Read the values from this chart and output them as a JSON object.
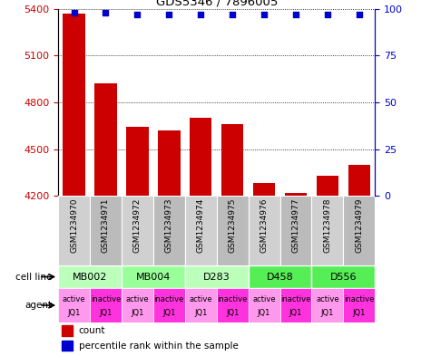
{
  "title": "GDS5346 / 7896005",
  "samples": [
    "GSM1234970",
    "GSM1234971",
    "GSM1234972",
    "GSM1234973",
    "GSM1234974",
    "GSM1234975",
    "GSM1234976",
    "GSM1234977",
    "GSM1234978",
    "GSM1234979"
  ],
  "counts": [
    5370,
    4920,
    4640,
    4620,
    4700,
    4660,
    4280,
    4220,
    4330,
    4400
  ],
  "percentile_ranks": [
    98,
    98,
    97,
    97,
    97,
    97,
    97,
    97,
    97,
    97
  ],
  "ylim_left": [
    4200,
    5400
  ],
  "ylim_right": [
    0,
    100
  ],
  "yticks_left": [
    4200,
    4500,
    4800,
    5100,
    5400
  ],
  "yticks_right": [
    0,
    25,
    50,
    75,
    100
  ],
  "bar_color": "#cc0000",
  "dot_color": "#0000cc",
  "sample_bg_even": "#d0d0d0",
  "sample_bg_odd": "#bbbbbb",
  "cell_lines": [
    {
      "name": "MB002",
      "start": 0,
      "end": 2,
      "color": "#bbffbb"
    },
    {
      "name": "MB004",
      "start": 2,
      "end": 4,
      "color": "#99ff99"
    },
    {
      "name": "D283",
      "start": 4,
      "end": 6,
      "color": "#bbffbb"
    },
    {
      "name": "D458",
      "start": 6,
      "end": 8,
      "color": "#55ee55"
    },
    {
      "name": "D556",
      "start": 8,
      "end": 10,
      "color": "#55ee55"
    }
  ],
  "agents": [
    {
      "label_top": "active",
      "label_bot": "JQ1",
      "color": "#ff99ee"
    },
    {
      "label_top": "inactive",
      "label_bot": "JQ1",
      "color": "#ff33dd"
    },
    {
      "label_top": "active",
      "label_bot": "JQ1",
      "color": "#ff99ee"
    },
    {
      "label_top": "inactive",
      "label_bot": "JQ1",
      "color": "#ff33dd"
    },
    {
      "label_top": "active",
      "label_bot": "JQ1",
      "color": "#ff99ee"
    },
    {
      "label_top": "inactive",
      "label_bot": "JQ1",
      "color": "#ff33dd"
    },
    {
      "label_top": "active",
      "label_bot": "JQ1",
      "color": "#ff99ee"
    },
    {
      "label_top": "inactive",
      "label_bot": "JQ1",
      "color": "#ff33dd"
    },
    {
      "label_top": "active",
      "label_bot": "JQ1",
      "color": "#ff99ee"
    },
    {
      "label_top": "inactive",
      "label_bot": "JQ1",
      "color": "#ff33dd"
    }
  ],
  "legend_count_color": "#cc0000",
  "legend_dot_color": "#0000cc",
  "ylabel_right_color": "#0000cc",
  "ylabel_left_color": "#cc0000"
}
